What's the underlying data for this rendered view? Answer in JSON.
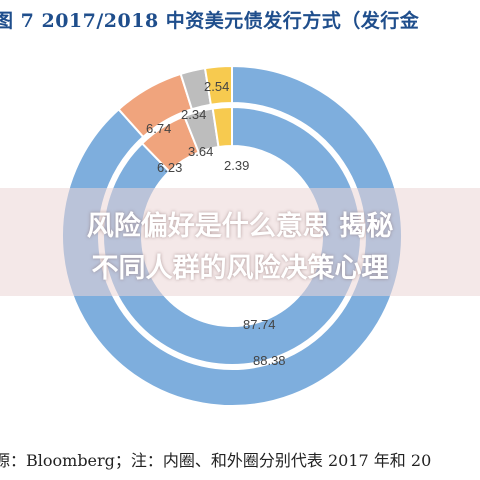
{
  "title": {
    "figure_no": "7",
    "text": "2017/2018 中资美元债发行方式（发行金"
  },
  "chart_data": {
    "type": "donut",
    "title": "2017/2018 中资美元债发行方式（发行金",
    "legend": "none",
    "rings": [
      {
        "name": "",
        "year": "2017",
        "values": [
          87.74,
          6.23,
          3.64,
          2.39
        ],
        "colors": [
          "#7eaedd",
          "#f0a47d",
          "#bdbdbd",
          "#f7ca4f"
        ]
      },
      {
        "name": "",
        "year": "2018",
        "values": [
          88.38,
          6.74,
          2.34,
          2.54
        ],
        "colors": [
          "#7eaedd",
          "#f0a47d",
          "#bdbdbd",
          "#f7ca4f"
        ]
      }
    ]
  },
  "labels": {
    "outer_blue": "88.38",
    "outer_orange": "6.74",
    "outer_gray": "2.34",
    "outer_yellow": "2.54",
    "inner_blue": "87.74",
    "inner_orange": "6.23",
    "inner_gray": "3.64",
    "inner_yellow": "2.39"
  },
  "overlay": {
    "line1": "风险偏好是什么意思 揭秘",
    "line2": "不同人群的风险决策心理"
  },
  "source": "源：Bloomberg；注：内圈、和外圈分别代表 2017 年和 20"
}
